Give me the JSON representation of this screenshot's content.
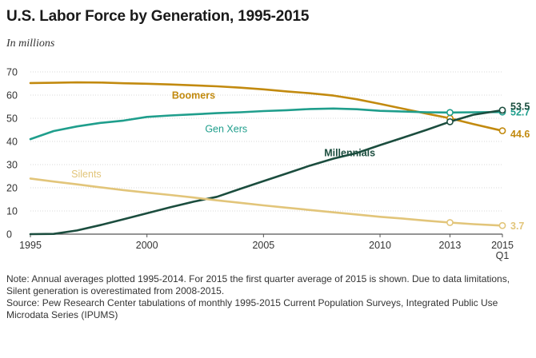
{
  "title": "U.S. Labor Force by Generation, 1995-2015",
  "subtitle": "In millions",
  "chart_data": {
    "type": "line",
    "title": "U.S. Labor Force by Generation, 1995-2015",
    "ylabel": "In millions",
    "ylim": [
      0,
      70
    ],
    "yticks": [
      0,
      10,
      20,
      30,
      40,
      50,
      60,
      70
    ],
    "xlim": [
      1995,
      2015.25
    ],
    "xticks": [
      {
        "x": 1995,
        "label": "1995"
      },
      {
        "x": 2000,
        "label": "2000"
      },
      {
        "x": 2005,
        "label": "2005"
      },
      {
        "x": 2010,
        "label": "2010"
      },
      {
        "x": 2013,
        "label": "2013"
      },
      {
        "x": 2015.25,
        "label": "2015",
        "sublabel": "Q1"
      }
    ],
    "grid": true,
    "series": [
      {
        "name": "Boomers",
        "color": "#c28a0f",
        "x": [
          1995,
          1996,
          1997,
          1998,
          1999,
          2000,
          2001,
          2002,
          2003,
          2004,
          2005,
          2006,
          2007,
          2008,
          2009,
          2010,
          2011,
          2012,
          2013,
          2014,
          2015.25
        ],
        "values": [
          65.2,
          65.3,
          65.5,
          65.4,
          65.1,
          64.9,
          64.6,
          64.2,
          63.8,
          63.2,
          62.5,
          61.6,
          60.8,
          59.8,
          58.2,
          56.2,
          54.1,
          52.0,
          50.0,
          47.5,
          44.6
        ],
        "label_text": "Boomers",
        "end_label": "44.6"
      },
      {
        "name": "Gen Xers",
        "color": "#1f9e8c",
        "x": [
          1995,
          1996,
          1997,
          1998,
          1999,
          2000,
          2001,
          2002,
          2003,
          2004,
          2005,
          2006,
          2007,
          2008,
          2009,
          2010,
          2011,
          2012,
          2013,
          2014,
          2015.25
        ],
        "values": [
          41.0,
          44.5,
          46.5,
          48.0,
          49.0,
          50.6,
          51.2,
          51.7,
          52.2,
          52.6,
          53.1,
          53.5,
          54.0,
          54.2,
          53.9,
          53.2,
          52.9,
          52.6,
          52.5,
          52.6,
          52.7
        ],
        "label_text": "Gen Xers",
        "end_label": "52.7"
      },
      {
        "name": "Millennials",
        "color": "#1b4d3e",
        "x": [
          1995,
          1996,
          1997,
          1998,
          1999,
          2000,
          2001,
          2002,
          2003,
          2004,
          2005,
          2006,
          2007,
          2008,
          2009,
          2010,
          2011,
          2012,
          2013,
          2014,
          2015.25
        ],
        "values": [
          0,
          0.1,
          1.6,
          3.9,
          6.4,
          9.0,
          11.6,
          14.0,
          16.1,
          19.5,
          22.9,
          26.2,
          29.6,
          32.6,
          35.0,
          38.4,
          41.7,
          45.0,
          48.5,
          51.5,
          53.5
        ],
        "label_text": "Millennials",
        "end_label": "53.5"
      },
      {
        "name": "Silents",
        "color": "#e2c57a",
        "x": [
          1995,
          1996,
          1997,
          1998,
          1999,
          2000,
          2001,
          2002,
          2003,
          2004,
          2005,
          2006,
          2007,
          2008,
          2009,
          2010,
          2011,
          2012,
          2013,
          2014,
          2015.25
        ],
        "values": [
          24.0,
          22.7,
          21.5,
          20.2,
          19.0,
          17.9,
          16.9,
          15.8,
          14.6,
          13.5,
          12.4,
          11.4,
          10.4,
          9.4,
          8.5,
          7.5,
          6.7,
          5.8,
          5.0,
          4.3,
          3.7
        ],
        "label_text": "Silents",
        "end_label": "3.7"
      }
    ]
  },
  "notes": {
    "note": "Note: Annual averages plotted 1995-2014. For 2015 the first quarter average of 2015 is shown. Due to data limitations, Silent generation is overestimated from 2008-2015.",
    "source": "Source: Pew Research Center tabulations of monthly 1995-2015 Current Population Surveys, Integrated Public Use Microdata Series (IPUMS)"
  }
}
